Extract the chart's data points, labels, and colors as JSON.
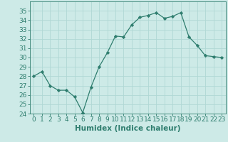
{
  "x": [
    0,
    1,
    2,
    3,
    4,
    5,
    6,
    7,
    8,
    9,
    10,
    11,
    12,
    13,
    14,
    15,
    16,
    17,
    18,
    19,
    20,
    21,
    22,
    23
  ],
  "y": [
    28,
    28.5,
    27,
    26.5,
    26.5,
    25.8,
    24.1,
    26.8,
    29,
    30.5,
    32.3,
    32.2,
    33.5,
    34.3,
    34.5,
    34.8,
    34.2,
    34.4,
    34.8,
    32.2,
    31.3,
    30.2,
    30.1,
    30.0
  ],
  "line_color": "#2e7d6e",
  "marker": "D",
  "marker_size": 2.2,
  "bg_color": "#cdeae7",
  "grid_color": "#b0d8d4",
  "axis_color": "#2e7d6e",
  "tick_color": "#2e7d6e",
  "xlabel": "Humidex (Indice chaleur)",
  "ylim": [
    24,
    36
  ],
  "yticks": [
    24,
    25,
    26,
    27,
    28,
    29,
    30,
    31,
    32,
    33,
    34,
    35
  ],
  "xticks": [
    0,
    1,
    2,
    3,
    4,
    5,
    6,
    7,
    8,
    9,
    10,
    11,
    12,
    13,
    14,
    15,
    16,
    17,
    18,
    19,
    20,
    21,
    22,
    23
  ],
  "xlabel_fontsize": 7.5,
  "tick_fontsize": 6.5
}
